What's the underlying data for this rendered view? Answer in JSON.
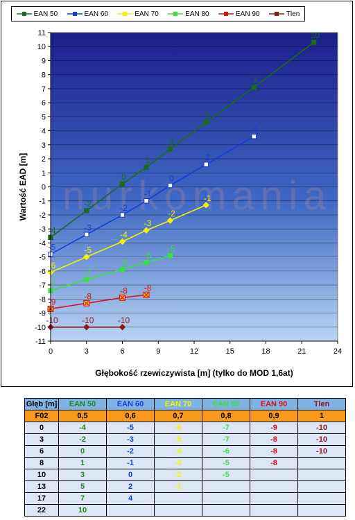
{
  "chart_data": {
    "type": "line",
    "xlabel": "Głębokość rzewiczywista [m] (tylko do MOD 1,6at)",
    "ylabel": "Wartość EAD [m]",
    "xlim": [
      0,
      24
    ],
    "ylim": [
      -11,
      11
    ],
    "x_ticks": [
      "0",
      "3",
      "6",
      "9",
      "12",
      "15",
      "18",
      "21",
      "24"
    ],
    "y_ticks": [
      "11",
      "10",
      "9",
      "8",
      "7",
      "6",
      "5",
      "4",
      "3",
      "2",
      "1",
      "0",
      "-1",
      "-2",
      "-3",
      "-4",
      "-5",
      "-6",
      "-7",
      "-8",
      "-9",
      "-10",
      "-11"
    ],
    "watermark": "nurkomania",
    "series": [
      {
        "name": "EAN 50",
        "color": "#1a6b1a",
        "marker": "square",
        "x": [
          0,
          3,
          6,
          8,
          10,
          13,
          17,
          22
        ],
        "y": [
          -3.6,
          -1.7,
          0.2,
          1.4,
          2.7,
          4.6,
          7.1,
          10.3
        ],
        "labels": [
          "-4",
          "-2",
          "0",
          "1",
          "3",
          "5",
          "7",
          "10"
        ]
      },
      {
        "name": "EAN 60",
        "color": "#0f3fd8",
        "marker": "square-open",
        "x": [
          0,
          3,
          6,
          8,
          10,
          13,
          17
        ],
        "y": [
          -4.8,
          -3.4,
          -2.0,
          -1.0,
          0.1,
          1.6,
          3.6
        ],
        "labels": [
          "-5",
          "-3",
          "-2",
          "-1",
          "0",
          "2",
          "4"
        ]
      },
      {
        "name": "EAN 70",
        "color": "#f4f400",
        "marker": "diamond",
        "x": [
          0,
          3,
          6,
          8,
          10,
          13
        ],
        "y": [
          -6.1,
          -5.0,
          -3.9,
          -3.1,
          -2.4,
          -1.3
        ],
        "labels": [
          "-6",
          "-5",
          "-4",
          "-3",
          "-2",
          "-1"
        ]
      },
      {
        "name": "EAN 80",
        "color": "#3ce03c",
        "marker": "square",
        "x": [
          0,
          3,
          6,
          8,
          10
        ],
        "y": [
          -7.4,
          -6.6,
          -5.9,
          -5.4,
          -4.9
        ],
        "labels": [
          "-7",
          "-7",
          "-6",
          "-5",
          "-5"
        ]
      },
      {
        "name": "EAN 90",
        "color": "#d81414",
        "marker": "star",
        "x": [
          0,
          3,
          6,
          8
        ],
        "y": [
          -8.7,
          -8.3,
          -7.9,
          -7.7
        ],
        "labels": [
          "-9",
          "-8",
          "-8",
          "-8"
        ]
      },
      {
        "name": "Tlen",
        "color": "#8b1a1a",
        "marker": "diamond",
        "x": [
          0,
          3,
          6
        ],
        "y": [
          -10,
          -10,
          -10
        ],
        "labels": [
          "-10",
          "-10",
          "-10"
        ]
      }
    ]
  },
  "legend": [
    {
      "label": "EAN 50",
      "color": "#1a6b1a"
    },
    {
      "label": "EAN 60",
      "color": "#0f3fd8"
    },
    {
      "label": "EAN 70",
      "color": "#f4f400"
    },
    {
      "label": "EAN 80",
      "color": "#3ce03c"
    },
    {
      "label": "EAN 90",
      "color": "#d81414"
    },
    {
      "label": "Tlen",
      "color": "#8b1a1a"
    }
  ],
  "table": {
    "headers": [
      {
        "text": "Głęb [m]",
        "color": "#000000"
      },
      {
        "text": "EAN 50",
        "color": "#1a8b1a"
      },
      {
        "text": "EAN 60",
        "color": "#0f3fd8"
      },
      {
        "text": "EAN 70",
        "color": "#f4f400"
      },
      {
        "text": "EAN 80",
        "color": "#3ce03c"
      },
      {
        "text": "EAN 90",
        "color": "#d81414"
      },
      {
        "text": "Tlen",
        "color": "#8b1a1a"
      }
    ],
    "f02_row": [
      "F02",
      "0,5",
      "0,6",
      "0,7",
      "0,8",
      "0,9",
      "1"
    ],
    "rows": [
      [
        "0",
        "-4",
        "-5",
        "-6",
        "-7",
        "-9",
        "-10"
      ],
      [
        "3",
        "-2",
        "-3",
        "-5",
        "-7",
        "-8",
        "-10"
      ],
      [
        "6",
        "0",
        "-2",
        "-4",
        "-6",
        "-8",
        "-10"
      ],
      [
        "8",
        "1",
        "-1",
        "-3",
        "-5",
        "-8",
        ""
      ],
      [
        "10",
        "3",
        "0",
        "-2",
        "-5",
        "",
        ""
      ],
      [
        "13",
        "5",
        "2",
        "-1",
        "",
        "",
        ""
      ],
      [
        "17",
        "7",
        "4",
        "",
        "",
        "",
        ""
      ],
      [
        "22",
        "10",
        "",
        "",
        "",
        "",
        ""
      ]
    ]
  }
}
